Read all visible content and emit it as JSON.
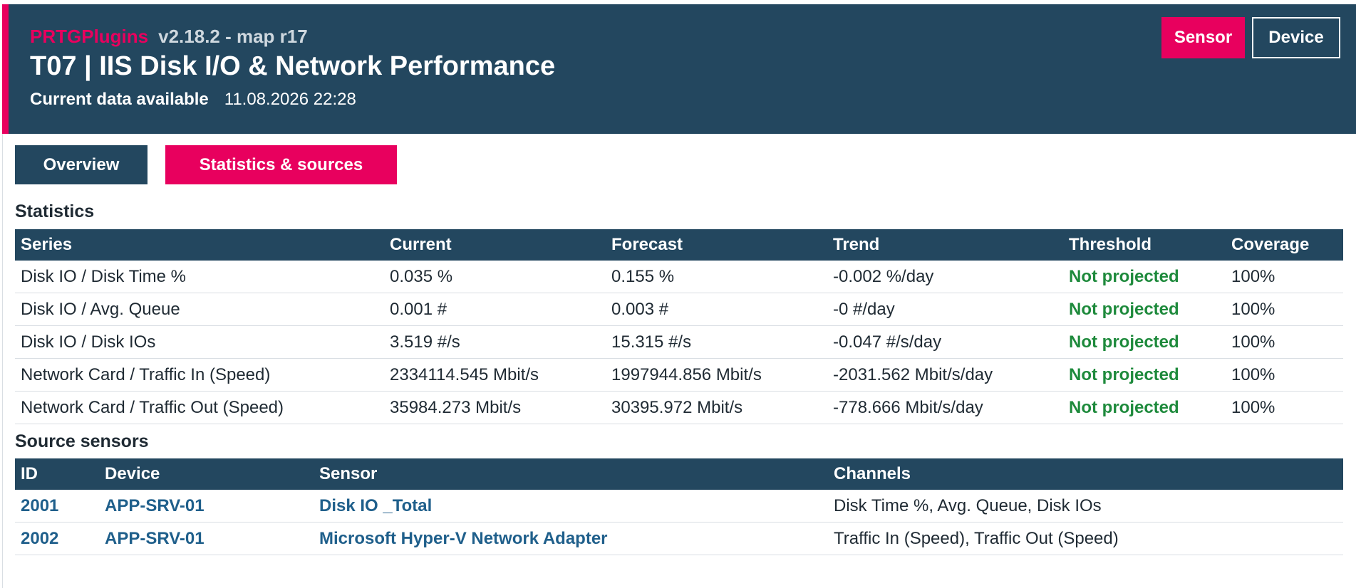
{
  "header": {
    "brand": "PRTGPlugins",
    "version": "v2.18.2 - map r17",
    "title": "T07 | IIS Disk I/O & Network Performance",
    "data_label": "Current data available",
    "data_timestamp": "11.08.2026 22:28",
    "sensor_button": "Sensor",
    "device_button": "Device"
  },
  "tabs": {
    "overview": "Overview",
    "statistics": "Statistics & sources"
  },
  "statistics": {
    "title": "Statistics",
    "columns": [
      "Series",
      "Current",
      "Forecast",
      "Trend",
      "Threshold",
      "Coverage"
    ],
    "rows": [
      [
        "Disk IO / Disk Time %",
        "0.035 %",
        "0.155 %",
        "-0.002 %/day",
        "Not projected",
        "100%"
      ],
      [
        "Disk IO / Avg. Queue",
        "0.001 #",
        "0.003 #",
        "-0 #/day",
        "Not projected",
        "100%"
      ],
      [
        "Disk IO / Disk IOs",
        "3.519 #/s",
        "15.315 #/s",
        "-0.047 #/s/day",
        "Not projected",
        "100%"
      ],
      [
        "Network Card / Traffic In (Speed)",
        "2334114.545 Mbit/s",
        "1997944.856 Mbit/s",
        "-2031.562 Mbit/s/day",
        "Not projected",
        "100%"
      ],
      [
        "Network Card / Traffic Out (Speed)",
        "35984.273 Mbit/s",
        "30395.972 Mbit/s",
        "-778.666 Mbit/s/day",
        "Not projected",
        "100%"
      ]
    ]
  },
  "sources": {
    "title": "Source sensors",
    "columns": [
      "ID",
      "Device",
      "Sensor",
      "Channels"
    ],
    "rows": [
      [
        "2001",
        "APP-SRV-01",
        "Disk IO _Total",
        "Disk Time %, Avg. Queue, Disk IOs"
      ],
      [
        "2002",
        "APP-SRV-01",
        "Microsoft Hyper-V Network Adapter",
        "Traffic In (Speed), Traffic Out (Speed)"
      ]
    ]
  },
  "colors": {
    "header_bg": "#23475f",
    "accent": "#e8005e",
    "ok_green": "#1e8a3c",
    "link_blue": "#1f5f8b"
  }
}
